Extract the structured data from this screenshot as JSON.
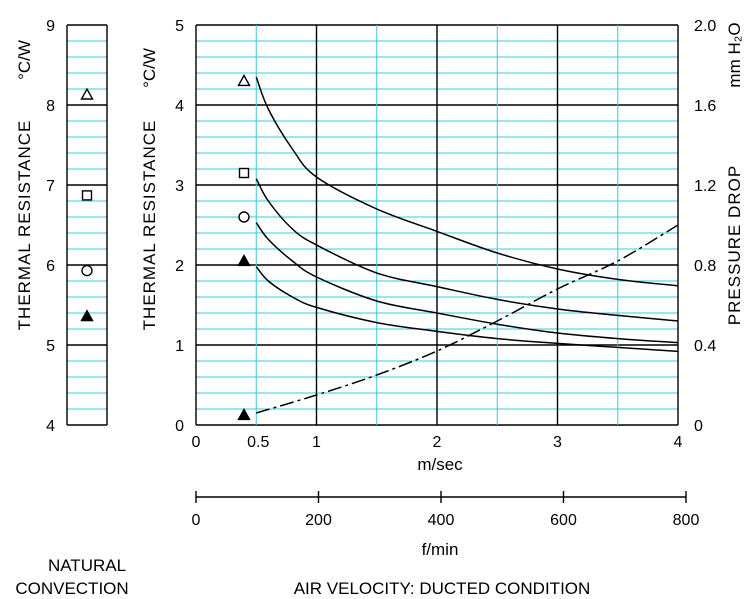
{
  "chart_data": [
    {
      "type": "scatter",
      "panel": "natural_convection",
      "title": "NATURAL CONVECTION",
      "ylabel": "THERMAL RESISTANCE",
      "yunit": "°C/W",
      "ylim": [
        4,
        9
      ],
      "yticks": [
        "4",
        "5",
        "6",
        "7",
        "8",
        "9"
      ],
      "grid": true,
      "points": [
        {
          "marker": "triangle-open",
          "y": 8.13
        },
        {
          "marker": "square-open",
          "y": 6.87
        },
        {
          "marker": "circle-open",
          "y": 5.93
        },
        {
          "marker": "triangle-filled",
          "y": 5.36
        }
      ]
    },
    {
      "type": "line",
      "panel": "ducted",
      "title": "AIR VELOCITY:  DUCTED CONDITION",
      "xlabel": "m/sec",
      "xlim": [
        0,
        4
      ],
      "xticks": [
        "0",
        "0.5",
        "1",
        "2",
        "3",
        "4"
      ],
      "x2label": "f/min",
      "x2lim": [
        0,
        800
      ],
      "x2ticks": [
        "0",
        "200",
        "400",
        "600",
        "800"
      ],
      "ylabel": "THERMAL RESISTANCE",
      "yunit": "°C/W",
      "ylim": [
        0,
        5
      ],
      "yticks": [
        "0",
        "1",
        "2",
        "3",
        "4",
        "5"
      ],
      "y2label": "PRESSURE DROP",
      "y2unit": "mm H₂O",
      "y2lim": [
        0,
        2.0
      ],
      "y2ticks": [
        "0",
        "0.4",
        "0.8",
        "1.2",
        "1.6",
        "2.0"
      ],
      "grid": true,
      "series": [
        {
          "marker": "triangle-open",
          "marker_y": 4.3,
          "x": [
            0.5,
            0.6,
            0.8,
            1.0,
            1.5,
            2.0,
            2.5,
            3.0,
            3.5,
            4.0
          ],
          "y": [
            4.35,
            3.95,
            3.45,
            3.1,
            2.7,
            2.42,
            2.15,
            1.95,
            1.82,
            1.74
          ]
        },
        {
          "marker": "square-open",
          "marker_y": 3.15,
          "x": [
            0.5,
            0.6,
            0.8,
            1.0,
            1.5,
            2.0,
            2.5,
            3.0,
            3.5,
            4.0
          ],
          "y": [
            3.08,
            2.8,
            2.45,
            2.25,
            1.9,
            1.73,
            1.57,
            1.45,
            1.37,
            1.3
          ]
        },
        {
          "marker": "circle-open",
          "marker_y": 2.6,
          "x": [
            0.5,
            0.6,
            0.8,
            1.0,
            1.5,
            2.0,
            2.5,
            3.0,
            3.5,
            4.0
          ],
          "y": [
            2.53,
            2.32,
            2.05,
            1.85,
            1.55,
            1.4,
            1.26,
            1.15,
            1.08,
            1.03
          ]
        },
        {
          "marker": "triangle-filled",
          "marker_y": 2.05,
          "x": [
            0.5,
            0.6,
            0.8,
            1.0,
            1.5,
            2.0,
            2.5,
            3.0,
            3.5,
            4.0
          ],
          "y": [
            1.98,
            1.8,
            1.6,
            1.47,
            1.28,
            1.17,
            1.08,
            1.02,
            0.97,
            0.92
          ]
        }
      ],
      "pressure_drop": {
        "axis": "y2",
        "style": "dash-dot",
        "marker": "triangle-filled",
        "marker_y": 0.05,
        "x": [
          0.5,
          1.0,
          1.5,
          2.0,
          2.5,
          3.0,
          3.5,
          4.0
        ],
        "y": [
          0.06,
          0.15,
          0.25,
          0.37,
          0.52,
          0.68,
          0.82,
          1.0
        ]
      }
    }
  ]
}
